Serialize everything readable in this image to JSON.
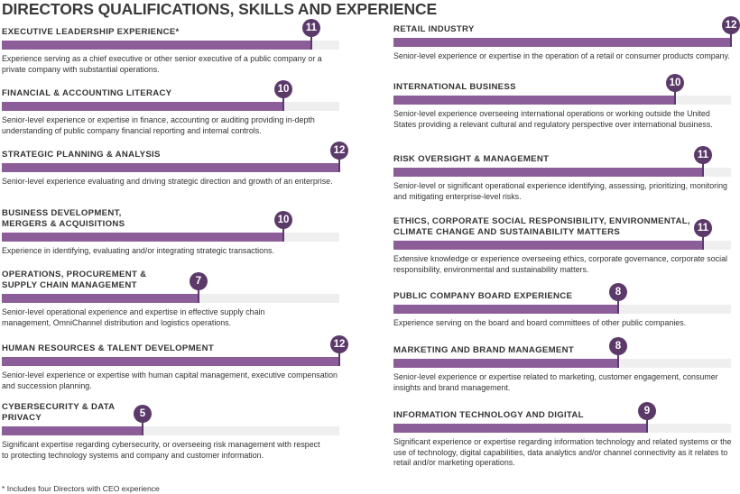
{
  "title": "DIRECTORS QUALIFICATIONS, SKILLS AND EXPERIENCE",
  "footnote": "*  Includes four Directors with CEO experience",
  "colors": {
    "bar": "#8c5e99",
    "badge": "#5b3a6a",
    "track": "#efefef"
  },
  "chart_data": {
    "type": "bar",
    "title": "DIRECTORS QUALIFICATIONS, SKILLS AND EXPERIENCE",
    "max": 12,
    "categories": [
      {
        "name": "EXECUTIVE LEADERSHIP EXPERIENCE*",
        "value": 11,
        "description": "Experience serving as a chief executive or other senior executive of a public company or a private company with substantial operations."
      },
      {
        "name": "FINANCIAL & ACCOUNTING LITERACY",
        "value": 10,
        "description": "Senior-level experience or expertise in finance, accounting or auditing providing in-depth understanding of public company financial reporting and internal controls."
      },
      {
        "name": "STRATEGIC PLANNING & ANALYSIS",
        "value": 12,
        "description": "Senior-level experience evaluating and driving strategic direction and growth of an enterprise."
      },
      {
        "name": "BUSINESS DEVELOPMENT, MERGERS & ACQUISITIONS",
        "value": 10,
        "description": "Experience in identifying, evaluating and/or integrating strategic transactions."
      },
      {
        "name": "OPERATIONS, PROCUREMENT & SUPPLY CHAIN MANAGEMENT",
        "value": 7,
        "description": "Senior-level operational experience and expertise in effective supply chain management, OmniChannel distribution and logistics operations."
      },
      {
        "name": "HUMAN RESOURCES & TALENT DEVELOPMENT",
        "value": 12,
        "description": "Senior-level experience or expertise with human capital management, executive compensation and succession planning."
      },
      {
        "name": "CYBERSECURITY & DATA PRIVACY",
        "value": 5,
        "description": "Significant expertise regarding cybersecurity, or overseeing risk management with respect to protecting technology systems and company and customer information."
      },
      {
        "name": "RETAIL INDUSTRY",
        "value": 12,
        "description": "Senior-level experience or expertise in the operation of a retail or consumer products company."
      },
      {
        "name": "INTERNATIONAL BUSINESS",
        "value": 10,
        "description": "Senior-level experience overseeing international operations or working outside the United States providing a relevant cultural and regulatory perspective over international business."
      },
      {
        "name": "RISK OVERSIGHT & MANAGEMENT",
        "value": 11,
        "description": "Senior-level or significant operational experience identifying, assessing, prioritizing, monitoring and mitigating enterprise-level risks."
      },
      {
        "name": "ETHICS, CORPORATE SOCIAL RESPONSIBILITY, ENVIRONMENTAL, CLIMATE CHANGE AND SUSTAINABILITY MATTERS",
        "value": 11,
        "description": "Extensive knowledge or experience overseeing ethics, corporate governance, corporate social responsibility, environmental and sustainability matters."
      },
      {
        "name": "PUBLIC COMPANY BOARD EXPERIENCE",
        "value": 8,
        "description": "Experience serving on the board and board committees of other public companies."
      },
      {
        "name": "MARKETING AND BRAND MANAGEMENT",
        "value": 8,
        "description": "Senior-level experience or expertise related to marketing, customer engagement, consumer insights and brand management."
      },
      {
        "name": "INFORMATION TECHNOLOGY AND DIGITAL",
        "value": 9,
        "description": "Significant experience or expertise regarding information technology and related systems or the use of technology, digital capabilities, data analytics and/or channel connectivity as it relates to retail and/or marketing operations."
      }
    ]
  }
}
